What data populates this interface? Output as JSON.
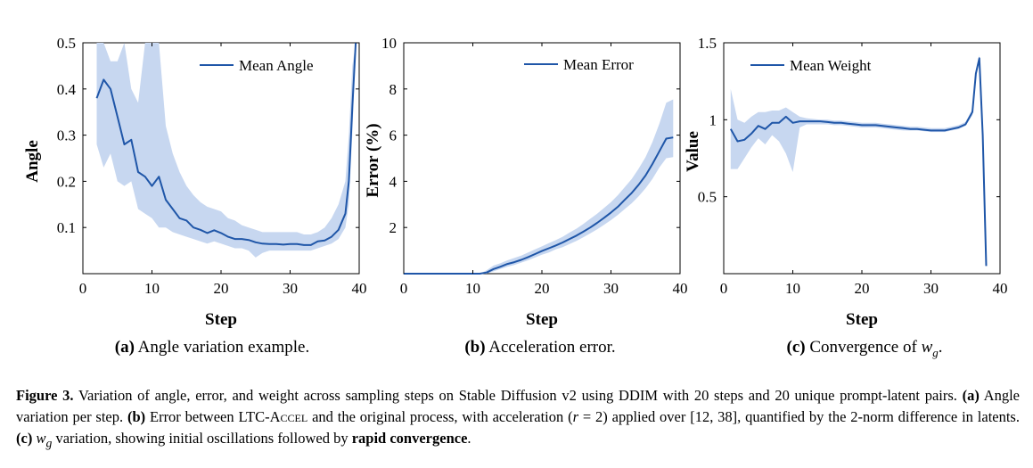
{
  "chart_data": [
    {
      "type": "line",
      "subcaption_label": "(a)",
      "subcaption_text": "Angle variation example.",
      "xlabel": "Step",
      "ylabel": "Angle",
      "xlim": [
        0,
        40
      ],
      "ylim": [
        0,
        0.5
      ],
      "xticks": [
        0,
        10,
        20,
        30,
        40
      ],
      "yticks": [
        0.1,
        0.2,
        0.3,
        0.4,
        0.5
      ],
      "ytick_labels": [
        "0.1",
        "0.2",
        "0.3",
        "0.4",
        "0.5"
      ],
      "legend_position": "top-right",
      "grid": false,
      "line_color": "#1f56a8",
      "band_color": "#c7d7f0",
      "series": [
        {
          "name": "Mean Angle",
          "x": [
            2,
            3,
            4,
            5,
            6,
            7,
            8,
            9,
            10,
            11,
            12,
            13,
            14,
            15,
            16,
            17,
            18,
            19,
            20,
            21,
            22,
            23,
            24,
            25,
            26,
            27,
            28,
            29,
            30,
            31,
            32,
            33,
            34,
            35,
            36,
            37,
            38,
            38.5,
            39,
            39.5
          ],
          "y": [
            0.38,
            0.42,
            0.4,
            0.34,
            0.28,
            0.29,
            0.22,
            0.21,
            0.19,
            0.21,
            0.16,
            0.14,
            0.12,
            0.115,
            0.1,
            0.095,
            0.088,
            0.094,
            0.088,
            0.08,
            0.075,
            0.075,
            0.073,
            0.068,
            0.065,
            0.064,
            0.064,
            0.063,
            0.064,
            0.064,
            0.062,
            0.062,
            0.07,
            0.072,
            0.08,
            0.095,
            0.13,
            0.2,
            0.36,
            0.5
          ],
          "lower": [
            0.28,
            0.23,
            0.26,
            0.2,
            0.19,
            0.2,
            0.14,
            0.13,
            0.12,
            0.1,
            0.1,
            0.09,
            0.085,
            0.08,
            0.075,
            0.07,
            0.065,
            0.07,
            0.065,
            0.06,
            0.055,
            0.055,
            0.05,
            0.035,
            0.045,
            0.05,
            0.05,
            0.05,
            0.05,
            0.05,
            0.05,
            0.05,
            0.055,
            0.06,
            0.065,
            0.075,
            0.1,
            0.15,
            0.3,
            0.5
          ],
          "upper": [
            0.5,
            0.5,
            0.46,
            0.46,
            0.5,
            0.4,
            0.37,
            0.5,
            0.5,
            0.5,
            0.32,
            0.26,
            0.22,
            0.19,
            0.17,
            0.155,
            0.145,
            0.14,
            0.135,
            0.12,
            0.115,
            0.105,
            0.1,
            0.095,
            0.09,
            0.09,
            0.09,
            0.09,
            0.09,
            0.09,
            0.085,
            0.085,
            0.09,
            0.1,
            0.12,
            0.15,
            0.2,
            0.3,
            0.45,
            0.5
          ]
        }
      ]
    },
    {
      "type": "line",
      "subcaption_label": "(b)",
      "subcaption_text": "Acceleration error.",
      "xlabel": "Step",
      "ylabel": "Error (%)",
      "xlim": [
        0,
        40
      ],
      "ylim": [
        0,
        10
      ],
      "xticks": [
        0,
        10,
        20,
        30,
        40
      ],
      "yticks": [
        2,
        4,
        6,
        8,
        10
      ],
      "ytick_labels": [
        "2",
        "4",
        "6",
        "8",
        "10"
      ],
      "legend_position": "top-right",
      "grid": false,
      "line_color": "#1f56a8",
      "band_color": "#c7d7f0",
      "series": [
        {
          "name": "Mean Error",
          "x": [
            0,
            11,
            12,
            13,
            14,
            15,
            16,
            17,
            18,
            19,
            20,
            21,
            22,
            23,
            24,
            25,
            26,
            27,
            28,
            29,
            30,
            31,
            32,
            33,
            34,
            35,
            36,
            37,
            38,
            39
          ],
          "y": [
            0,
            0,
            0.05,
            0.2,
            0.3,
            0.42,
            0.5,
            0.6,
            0.72,
            0.85,
            0.98,
            1.1,
            1.22,
            1.35,
            1.5,
            1.65,
            1.82,
            2.0,
            2.2,
            2.42,
            2.65,
            2.9,
            3.2,
            3.5,
            3.85,
            4.25,
            4.75,
            5.3,
            5.85,
            5.9
          ],
          "lower": [
            0,
            0,
            0,
            0.1,
            0.2,
            0.3,
            0.38,
            0.48,
            0.58,
            0.7,
            0.82,
            0.92,
            1.05,
            1.15,
            1.28,
            1.42,
            1.58,
            1.75,
            1.92,
            2.12,
            2.32,
            2.55,
            2.8,
            3.05,
            3.35,
            3.7,
            4.1,
            4.6,
            5.0,
            5.05
          ],
          "upper": [
            0,
            0,
            0.15,
            0.35,
            0.45,
            0.58,
            0.68,
            0.78,
            0.92,
            1.05,
            1.18,
            1.32,
            1.45,
            1.6,
            1.78,
            1.95,
            2.15,
            2.38,
            2.6,
            2.85,
            3.1,
            3.4,
            3.75,
            4.1,
            4.55,
            5.05,
            5.7,
            6.5,
            7.4,
            7.55
          ]
        }
      ]
    },
    {
      "type": "line",
      "subcaption_label": "(c)",
      "subcaption_text": "Convergence of ",
      "subcaption_math": "w",
      "subcaption_sub": "g",
      "subcaption_end": ".",
      "xlabel": "Step",
      "ylabel": "Value",
      "xlim": [
        0,
        40
      ],
      "ylim": [
        0,
        1.5
      ],
      "xticks": [
        0,
        10,
        20,
        30,
        40
      ],
      "yticks": [
        0.5,
        1,
        1.5
      ],
      "ytick_labels": [
        "0.5",
        "1",
        "1.5"
      ],
      "legend_position": "top-left",
      "grid": false,
      "line_color": "#1f56a8",
      "band_color": "#c7d7f0",
      "series": [
        {
          "name": "Mean Weight",
          "x": [
            1,
            2,
            3,
            4,
            5,
            6,
            7,
            8,
            9,
            10,
            11,
            12,
            13,
            14,
            15,
            16,
            17,
            18,
            19,
            20,
            21,
            22,
            23,
            24,
            25,
            26,
            27,
            28,
            29,
            30,
            31,
            32,
            33,
            34,
            35,
            36,
            36.5,
            37,
            37.5,
            38
          ],
          "y": [
            0.94,
            0.86,
            0.87,
            0.91,
            0.96,
            0.94,
            0.98,
            0.98,
            1.02,
            0.98,
            0.99,
            0.99,
            0.99,
            0.99,
            0.985,
            0.98,
            0.98,
            0.975,
            0.97,
            0.965,
            0.965,
            0.965,
            0.96,
            0.955,
            0.95,
            0.945,
            0.94,
            0.94,
            0.935,
            0.93,
            0.93,
            0.93,
            0.94,
            0.95,
            0.97,
            1.05,
            1.3,
            1.4,
            0.9,
            0.05
          ],
          "lower": [
            0.68,
            0.68,
            0.75,
            0.82,
            0.88,
            0.84,
            0.9,
            0.86,
            0.78,
            0.66,
            0.95,
            0.97,
            0.97,
            0.97,
            0.97,
            0.965,
            0.965,
            0.96,
            0.955,
            0.95,
            0.95,
            0.95,
            0.945,
            0.94,
            0.935,
            0.93,
            0.93,
            0.93,
            0.925,
            0.92,
            0.92,
            0.92,
            0.93,
            0.94,
            0.96,
            1.03,
            1.28,
            1.38,
            0.88,
            0.05
          ],
          "upper": [
            1.2,
            1.0,
            0.98,
            1.02,
            1.05,
            1.05,
            1.06,
            1.06,
            1.08,
            1.05,
            1.02,
            1.01,
            1.005,
            1.0,
            1.0,
            0.995,
            0.995,
            0.99,
            0.985,
            0.98,
            0.98,
            0.98,
            0.975,
            0.97,
            0.965,
            0.96,
            0.955,
            0.955,
            0.95,
            0.945,
            0.945,
            0.945,
            0.955,
            0.965,
            0.985,
            1.07,
            1.32,
            1.42,
            0.92,
            0.05
          ]
        }
      ]
    }
  ],
  "caption": {
    "label": "Figure 3.",
    "p1": " Variation of angle, error, and weight across sampling steps on Stable Diffusion v2 using DDIM with 20 steps and 20 unique prompt-latent pairs. ",
    "a_label": "(a)",
    "p2": " Angle variation per step. ",
    "b_label": "(b)",
    "p3": " Error between LTC-",
    "accel": "Accel",
    "p4": " and the original process, with acceleration (",
    "r": "r",
    "p5": " = 2) applied over [12, 38], quantified by the 2-norm difference in latents. ",
    "c_label": "(c)",
    "w": "w",
    "g": "g",
    "p6": " variation, showing initial oscillations followed by ",
    "bold_end": "rapid convergence",
    "period": "."
  }
}
